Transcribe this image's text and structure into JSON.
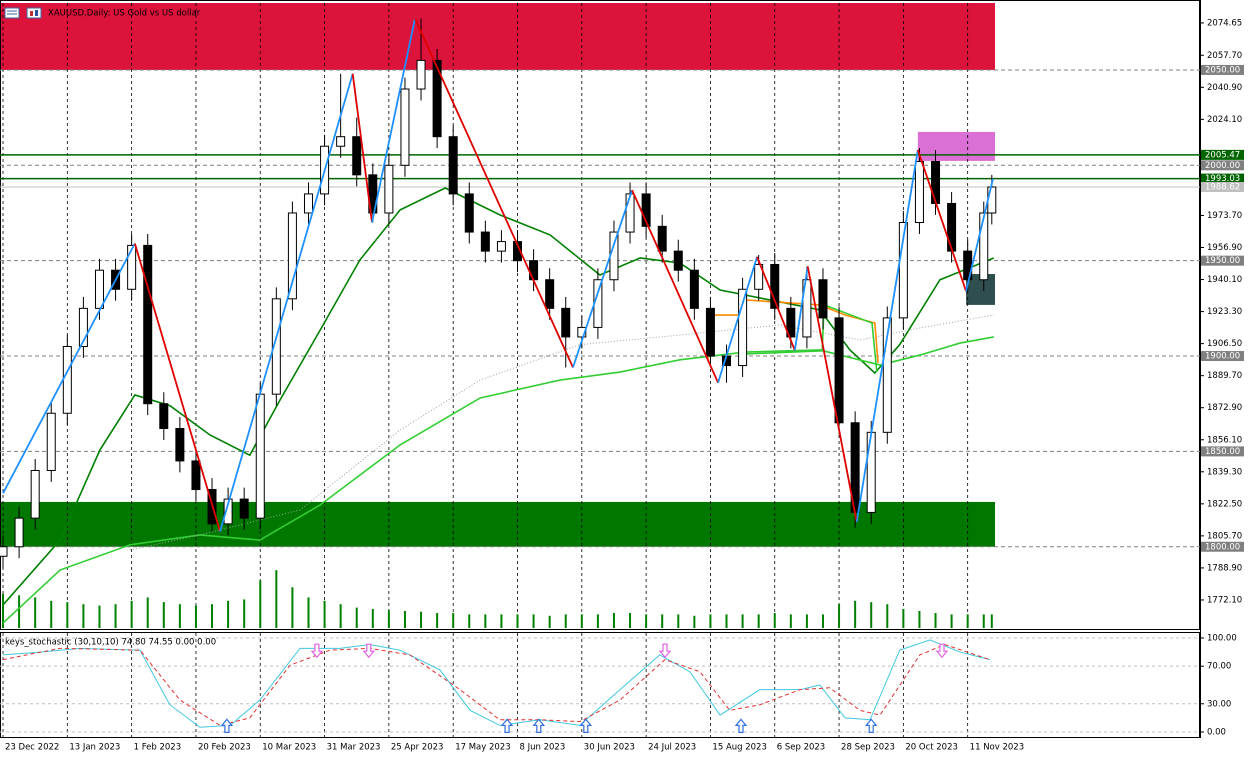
{
  "chart_data": {
    "type": "candlestick",
    "title": "XAUUSD,Daily: US Gold vs US dollar",
    "x": [
      0,
      4,
      8,
      12,
      16,
      20,
      24,
      28,
      32,
      36,
      40,
      44,
      48,
      52,
      56,
      60,
      64,
      68,
      72,
      76,
      80,
      84,
      88,
      92,
      96,
      100,
      104,
      108,
      112,
      116,
      120,
      124,
      128,
      132,
      136,
      140,
      144,
      148,
      152,
      156,
      160,
      164,
      168,
      172,
      176,
      180,
      184,
      188,
      192,
      196,
      200,
      204,
      208,
      212,
      216,
      220,
      224,
      228,
      232,
      236,
      240,
      244,
      246
    ],
    "open": [
      1795,
      1800,
      1815,
      1840,
      1870,
      1905,
      1925,
      1945,
      1935,
      1958,
      1875,
      1862,
      1845,
      1830,
      1812,
      1825,
      1815,
      1880,
      1930,
      1975,
      1985,
      2010,
      2015,
      1995,
      1975,
      2000,
      2040,
      2055,
      2015,
      1985,
      1965,
      1955,
      1960,
      1950,
      1940,
      1925,
      1910,
      1915,
      1940,
      1965,
      1985,
      1968,
      1955,
      1945,
      1925,
      1900,
      1895,
      1935,
      1948,
      1925,
      1910,
      1940,
      1920,
      1865,
      1818,
      1860,
      1920,
      1970,
      2002,
      1980,
      1955,
      1940,
      1975
    ],
    "high": [
      1806,
      1821,
      1846,
      1876,
      1911,
      1931,
      1951,
      1951,
      1964,
      1964,
      1881,
      1868,
      1851,
      1836,
      1831,
      1831,
      1886,
      1936,
      1981,
      1991,
      2016,
      2048,
      2025,
      2001,
      2006,
      2046,
      2077,
      2061,
      2021,
      1991,
      1971,
      1966,
      1966,
      1956,
      1946,
      1931,
      1921,
      1946,
      1971,
      1991,
      1991,
      1974,
      1961,
      1951,
      1931,
      1906,
      1941,
      1953,
      1954,
      1931,
      1947,
      1946,
      1926,
      1871,
      1866,
      1926,
      1976,
      2009,
      2008,
      1986,
      1961,
      1981,
      1995
    ],
    "low": [
      1789,
      1794,
      1809,
      1834,
      1864,
      1899,
      1919,
      1929,
      1929,
      1869,
      1856,
      1839,
      1824,
      1808,
      1806,
      1809,
      1809,
      1874,
      1924,
      1969,
      1979,
      2004,
      1989,
      1970,
      1969,
      1994,
      2034,
      2009,
      1979,
      1959,
      1949,
      1949,
      1944,
      1934,
      1919,
      1894,
      1904,
      1909,
      1934,
      1959,
      1962,
      1949,
      1939,
      1919,
      1894,
      1886,
      1889,
      1929,
      1919,
      1904,
      1904,
      1914,
      1859,
      1810,
      1812,
      1854,
      1914,
      1964,
      1974,
      1949,
      1934,
      1934,
      1969
    ],
    "close": [
      1800,
      1815,
      1840,
      1870,
      1905,
      1925,
      1945,
      1935,
      1958,
      1875,
      1862,
      1845,
      1830,
      1812,
      1825,
      1815,
      1880,
      1930,
      1975,
      1985,
      2010,
      2015,
      1995,
      1975,
      2000,
      2040,
      2055,
      2015,
      1985,
      1965,
      1955,
      1960,
      1950,
      1940,
      1925,
      1910,
      1915,
      1940,
      1965,
      1985,
      1968,
      1955,
      1945,
      1925,
      1900,
      1895,
      1935,
      1948,
      1925,
      1910,
      1940,
      1920,
      1865,
      1818,
      1860,
      1920,
      1970,
      2002,
      1980,
      1955,
      1940,
      1975,
      1988.62
    ],
    "volume": [
      50,
      48,
      45,
      40,
      38,
      35,
      33,
      35,
      40,
      45,
      38,
      35,
      33,
      35,
      40,
      42,
      70,
      85,
      60,
      45,
      40,
      35,
      30,
      28,
      26,
      25,
      24,
      22,
      22,
      20,
      20,
      20,
      20,
      20,
      18,
      20,
      20,
      20,
      22,
      22,
      20,
      20,
      20,
      18,
      20,
      20,
      20,
      20,
      22,
      20,
      20,
      20,
      35,
      40,
      38,
      35,
      28,
      25,
      22,
      20,
      20,
      20,
      20
    ],
    "vlim": [
      0,
      100
    ],
    "volume_color": "#008000",
    "up_color": "#ffffff",
    "down_color": "#000000",
    "xlim": [
      -0.75,
      297.8
    ],
    "xticks": [
      {
        "value": 0,
        "label": "23 Dec 2022"
      },
      {
        "value": 16,
        "label": "13 Jan 2023"
      },
      {
        "value": 32,
        "label": "1 Feb 2023"
      },
      {
        "value": 48,
        "label": "20 Feb 2023"
      },
      {
        "value": 64,
        "label": "10 Mar 2023"
      },
      {
        "value": 80,
        "label": "31 Mar 2023"
      },
      {
        "value": 96,
        "label": "25 Apr 2023"
      },
      {
        "value": 112,
        "label": "17 May 2023"
      },
      {
        "value": 128,
        "label": "8 Jun 2023"
      },
      {
        "value": 144,
        "label": "30 Jun 2023"
      },
      {
        "value": 160,
        "label": "24 Jul 2023"
      },
      {
        "value": 176,
        "label": "15 Aug 2023"
      },
      {
        "value": 192,
        "label": "6 Sep 2023"
      },
      {
        "value": 208,
        "label": "28 Sep 2023"
      },
      {
        "value": 224,
        "label": "20 Oct 2023"
      },
      {
        "value": 240,
        "label": "11 Nov 2023"
      }
    ],
    "ylim": [
      1757.4,
      2085.1
    ],
    "yticks": [
      2074.65,
      {
        "value": 2057.7,
        "label": "2057.70"
      },
      {
        "value": 2040.9,
        "label": "2040.90"
      },
      {
        "value": 2024.1,
        "label": "2024.10"
      },
      {
        "value": 1973.7,
        "label": "1973.70"
      },
      {
        "value": 1956.9,
        "label": "1956.90"
      },
      {
        "value": 1940.1,
        "label": "1940.10"
      },
      {
        "value": 1923.3,
        "label": "1923.30"
      },
      {
        "value": 1906.5,
        "label": "1906.50"
      },
      {
        "value": 1889.7,
        "label": "1889.70"
      },
      {
        "value": 1872.9,
        "label": "1872.90"
      },
      {
        "value": 1856.1,
        "label": "1856.10"
      },
      {
        "value": 1839.3,
        "label": "1839.30"
      },
      {
        "value": 1822.5,
        "label": "1822.50"
      },
      {
        "value": 1805.7,
        "label": "1805.70"
      },
      {
        "value": 1788.9,
        "label": "1788.90"
      },
      {
        "value": 1772.1,
        "label": "1772.10"
      }
    ],
    "grid": true,
    "levels": [
      {
        "value": 2050,
        "label": "2050.00",
        "color": "#808080",
        "text_color": "#ffffff",
        "style": "dashed"
      },
      {
        "value": 2005.47,
        "color": "#006400",
        "text_color": "#ffffff",
        "style": "solid"
      },
      {
        "value": 2000,
        "label": "2000.00",
        "color": "#808080",
        "text_color": "#ffffff",
        "style": "dashed"
      },
      {
        "value": 1993.03,
        "color": "#006400",
        "text_color": "#ffffff",
        "style": "solid"
      },
      {
        "value": 1988.62,
        "color": "#c0c0c0",
        "text_color": "#ffffff",
        "style": "solid"
      },
      {
        "value": 1950,
        "label": "1950.00",
        "color": "#808080",
        "text_color": "#ffffff",
        "style": "dashed"
      },
      {
        "value": 1900,
        "label": "1900.00",
        "color": "#808080",
        "text_color": "#ffffff",
        "style": "dashed"
      },
      {
        "value": 1850,
        "label": "1850.00",
        "color": "#808080",
        "text_color": "#ffffff",
        "style": "dashed"
      },
      {
        "value": 1800,
        "label": "1800.00",
        "color": "#808080",
        "text_color": "#ffffff",
        "style": "dashed"
      }
    ],
    "zones": [
      {
        "x": [
          -0.75,
          246.8
        ],
        "y": [
          2050,
          2085.1
        ],
        "color": "#dc143c"
      },
      {
        "x": [
          -0.75,
          246.8
        ],
        "y": [
          1800,
          1823.5
        ],
        "color": "#007800"
      },
      {
        "x": [
          227.6,
          246.8
        ],
        "y": [
          2002.3,
          2017.5
        ],
        "color": "#da70d6"
      },
      {
        "x": [
          239.6,
          246.8
        ],
        "y": [
          1926.8,
          1943
        ],
        "color": "#2f4f4f"
      }
    ],
    "zigzag": {
      "x": [
        0,
        32.8,
        54,
        87,
        91.8,
        102.5,
        141.8,
        156.5,
        177.9,
        187.6,
        197,
        200.2,
        212.4,
        227.6,
        239.6,
        246.3
      ],
      "values": [
        1828,
        1959,
        1808,
        2048,
        1970,
        2077,
        1894,
        1987,
        1886,
        1952,
        1903,
        1947,
        1813,
        2008,
        1934,
        1993
      ],
      "up_color": "#1e90ff",
      "down_color": "#e00000"
    },
    "lines": [
      {
        "color": "#008000",
        "style": "solid",
        "width": 1.6,
        "x": [
          0,
          14.2,
          24.1,
          32.8,
          41.5,
          51.5,
          61.4,
          68.9,
          78.9,
          88.8,
          98.8,
          110,
          123.6,
          136.1,
          148.5,
          158.5,
          168.4,
          178.4,
          190.8,
          203.2,
          210.7,
          216.9,
          223.1,
          233.1,
          246.5
        ],
        "values": [
          1769.5,
          1803.5,
          1850.7,
          1879.6,
          1874,
          1858.6,
          1848,
          1876.9,
          1913.6,
          1950.4,
          1976.6,
          1988.1,
          1974,
          1963.5,
          1942.5,
          1951.4,
          1948.8,
          1934.6,
          1929.4,
          1924.2,
          1903.2,
          1891.1,
          1906,
          1940,
          1951.4
        ]
      },
      {
        "color": "#32cd32",
        "style": "solid",
        "width": 1.6,
        "x": [
          0,
          14.2,
          31.6,
          49,
          63.9,
          78.9,
          98.8,
          118.7,
          138.6,
          153.5,
          168.4,
          184.6,
          203.2,
          218.2,
          228.1,
          238.1,
          246.5
        ],
        "values": [
          1760,
          1787.8,
          1801,
          1806.2,
          1803.5,
          1821.9,
          1853.4,
          1878,
          1887.4,
          1891.6,
          1898,
          1902.1,
          1903.2,
          1895.3,
          1900.5,
          1906.8,
          1910
        ]
      },
      {
        "color": "#a0a0a0",
        "style": "dotted",
        "width": 1,
        "x": [
          31.6,
          49,
          73.9,
          98.8,
          118.7,
          143.6,
          168.4,
          193.3,
          213.2,
          228.1,
          246.5
        ],
        "values": [
          1798.3,
          1806.2,
          1819.3,
          1861.2,
          1887.4,
          1906,
          1911,
          1916.3,
          1908.4,
          1914.7,
          1921.5
        ]
      },
      {
        "color": "#ff8c00",
        "style": "solid",
        "width": 1.6,
        "x": [
          175.4,
          175.9,
          183.8,
          184.8,
          203.2,
          209.5,
          216.9,
          217.7
        ],
        "values": [
          1898,
          1921.5,
          1921.5,
          1929.4,
          1926.8,
          1921.5,
          1917.3,
          1896.4
        ]
      },
      {
        "color": "#32cd32",
        "style": "solid",
        "width": 1.6,
        "x": [
          183.8,
          184.8,
          203.8,
          204.3,
          216.2,
          217.4
        ],
        "values": [
          1921,
          1901.1,
          1902.7,
          1926.8,
          1917.3,
          1891.6
        ]
      }
    ],
    "indicator": {
      "label": "keys_stochastic (30,10,10) 74.80 74.55 0.00 0.00",
      "ylim": [
        -6.4,
        105.3
      ],
      "yticks": [
        {
          "value": 100,
          "label": "100.00"
        },
        {
          "value": 70,
          "label": "70.00"
        },
        {
          "value": 30,
          "label": "30.00"
        },
        {
          "value": 0,
          "label": "0.00"
        }
      ],
      "series": [
        {
          "color": "#40c8e0",
          "style": "solid",
          "x": [
            0,
            9.2,
            19.2,
            34.1,
            41.5,
            49,
            56.5,
            63.9,
            73.9,
            83.8,
            91.3,
            98.8,
            108.7,
            116.2,
            123.6,
            133.6,
            143.5,
            153.5,
            163.4,
            170.9,
            178.4,
            188.3,
            198.3,
            203.2,
            209.5,
            215.7,
            223.1,
            230.6,
            238.1,
            245.5
          ],
          "values": [
            82,
            85,
            89,
            87,
            29,
            5,
            7,
            34,
            89,
            89,
            93,
            87,
            66,
            23,
            7,
            13,
            7,
            45,
            82,
            64,
            18,
            45,
            45,
            50,
            15,
            13,
            87,
            98,
            85,
            77
          ]
        },
        {
          "color": "#e03030",
          "style": "dashed",
          "x": [
            0,
            14.2,
            34.1,
            44,
            54,
            61.4,
            71.4,
            81.3,
            91.3,
            101.2,
            113.7,
            123.6,
            133.6,
            143.5,
            153.5,
            164.7,
            173.4,
            180.8,
            188.3,
            198.3,
            205.7,
            213.2,
            218.2,
            228.1,
            234.3,
            245.5
          ],
          "values": [
            77,
            89,
            87,
            34,
            7,
            15,
            71,
            87,
            89,
            82,
            45,
            13,
            13,
            11,
            34,
            77,
            64,
            23,
            29,
            45,
            47,
            23,
            18,
            82,
            93,
            77
          ]
        }
      ],
      "buy_signals": {
        "x": [
          55.7,
          125.4,
          133.3,
          145,
          183.6,
          216
        ],
        "values": [
          6,
          6,
          6,
          6,
          6,
          6
        ],
        "color": "#3070e0"
      },
      "sell_signals": {
        "x": [
          78.1,
          91,
          164.7,
          233.6
        ],
        "values": [
          87,
          87,
          87,
          87
        ],
        "color": "#e060e0"
      }
    }
  }
}
